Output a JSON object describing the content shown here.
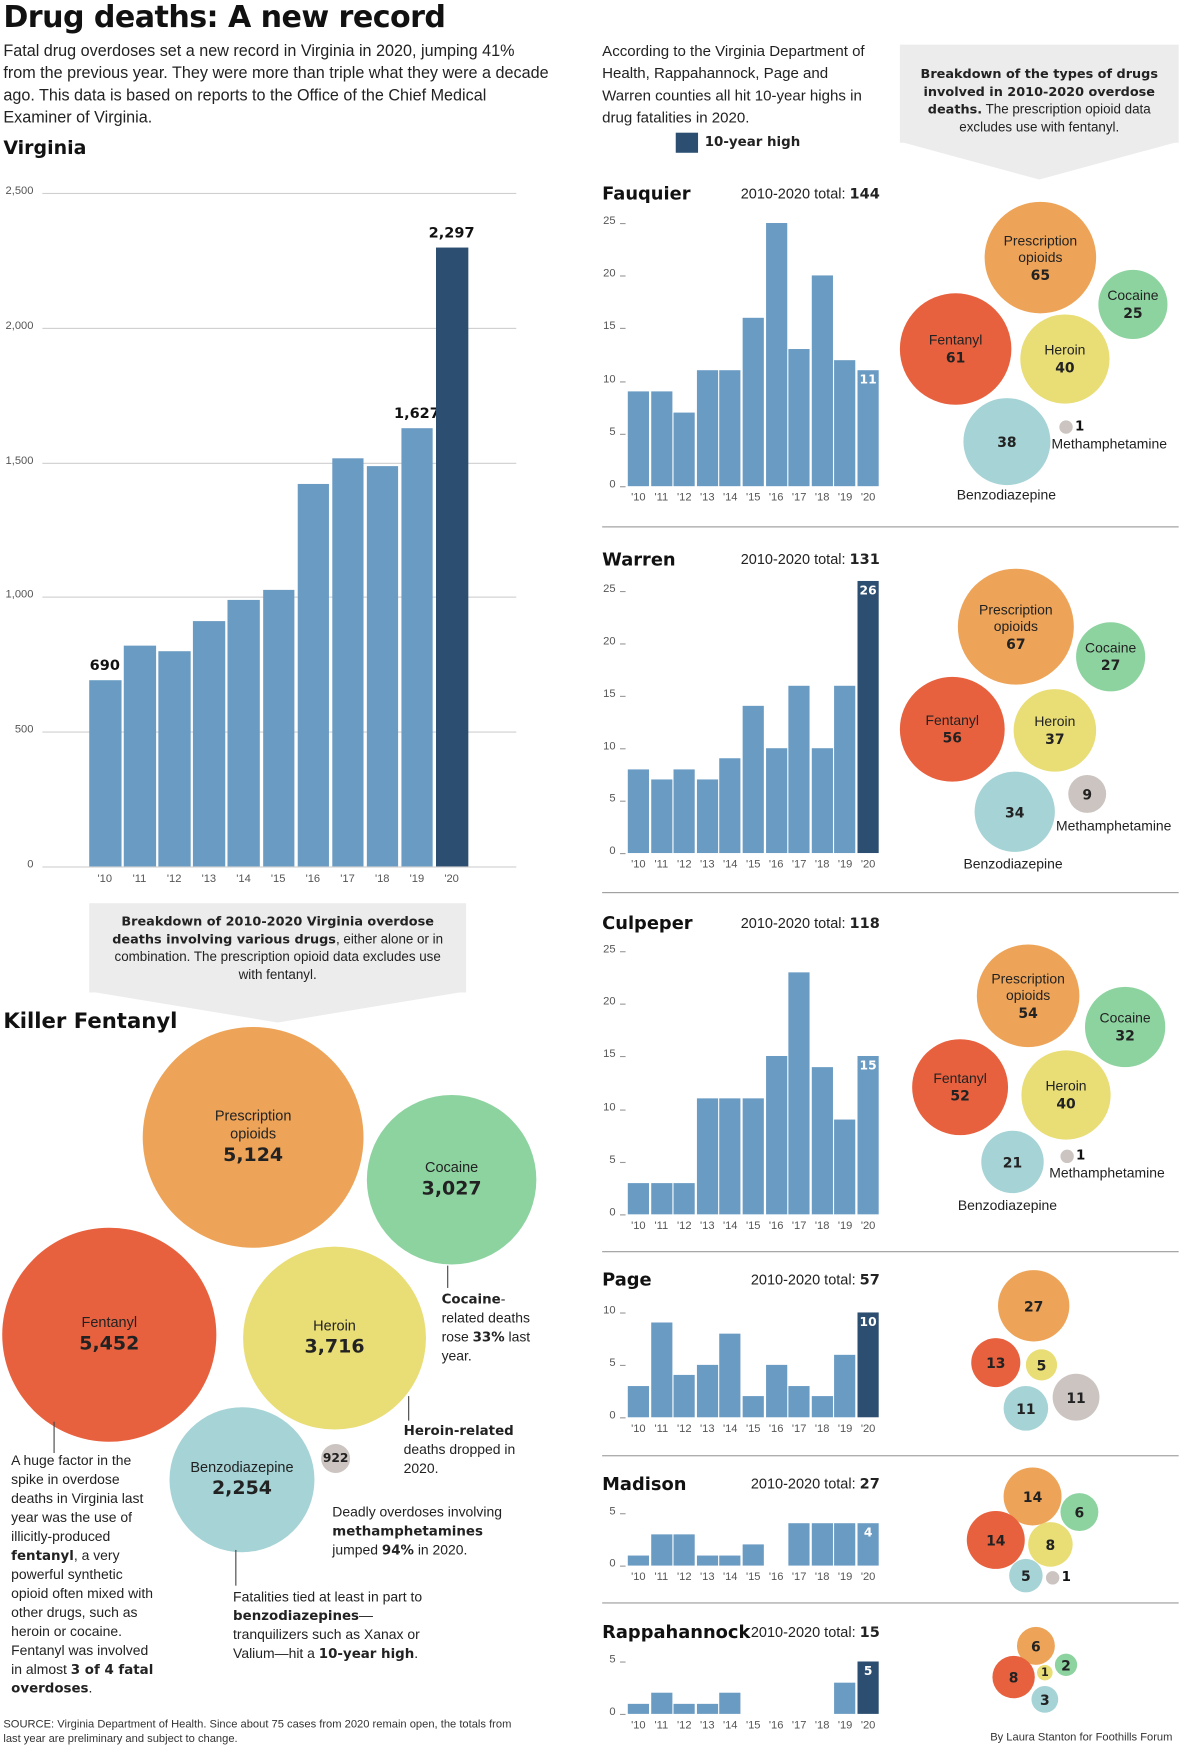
{
  "title": "Drug deaths: A new record",
  "intro": "Fatal drug overdoses set a new record in Virginia in 2020, jumping 41% from the previous year.  They were more than triple what they were a decade ago. This data is based on reports to the Office of the Chief Medical Examiner of Virginia.",
  "right_intro": "According to the Virginia Department of Health, Rappahannock, Page and Warren counties all hit 10-year highs in drug fatalities in 2020.",
  "legend": {
    "label": "10-year high",
    "color": "#2c4e70"
  },
  "colors": {
    "bar": "#6a9bc3",
    "highlight": "#2c4e70",
    "Prescription opioids": "#eda458",
    "Cocaine": "#8dd3a0",
    "Fentanyl": "#e8613f",
    "Heroin": "#e9dd75",
    "Benzodiazepine": "#a6d3d6",
    "Methamphetamine": "#cbc4c0"
  },
  "right_callout": [
    {
      "text": "Breakdown of the types of drugs involved in 2010-2020 overdose deaths.",
      "bold": true
    },
    {
      "text": " The prescription opioid data excludes use with fentanyl.",
      "bold": false
    }
  ],
  "left_callout": [
    {
      "text": "Breakdown of 2010-2020 Virginia overdose deaths involving various drugs",
      "bold": true
    },
    {
      "text": ", either alone or in combination. The prescription opioid data excludes use with fentanyl.",
      "bold": false
    }
  ],
  "killer_title": "Killer Fentanyl",
  "notes": {
    "fentanyl": [
      {
        "text": "A huge factor in the spike in overdose deaths in Virginia last year was the use of illicitly-produced ",
        "bold": false
      },
      {
        "text": "fentanyl",
        "bold": true
      },
      {
        "text": ", a very powerful synthetic opioid often mixed with other drugs, such as heroin or cocaine. Fentanyl was involved in almost ",
        "bold": false
      },
      {
        "text": "3 of 4 fatal overdoses",
        "bold": true
      },
      {
        "text": ".",
        "bold": false
      }
    ],
    "cocaine": [
      {
        "text": "Cocaine",
        "bold": true
      },
      {
        "text": "-related deaths rose ",
        "bold": false
      },
      {
        "text": "33%",
        "bold": true
      },
      {
        "text": " last year.",
        "bold": false
      }
    ],
    "heroin": [
      {
        "text": "Heroin-related",
        "bold": true
      },
      {
        "text": " deaths dropped in 2020.",
        "bold": false
      }
    ],
    "meth": [
      {
        "text": "Deadly overdoses involving ",
        "bold": false
      },
      {
        "text": "methamphetamines",
        "bold": true
      },
      {
        "text": " jumped ",
        "bold": false
      },
      {
        "text": "94%",
        "bold": true
      },
      {
        "text": " in 2020.",
        "bold": false
      }
    ],
    "benzo": [
      {
        "text": "Fatalities tied at least in part to ",
        "bold": false
      },
      {
        "text": "benzodiazepines",
        "bold": true
      },
      {
        "text": "—tranquilizers such as Xanax or Valium—hit a ",
        "bold": false
      },
      {
        "text": "10-year high",
        "bold": true
      },
      {
        "text": ".",
        "bold": false
      }
    ]
  },
  "source": "SOURCE: Virginia Department of Health. Since about 75 cases from 2020 remain open, the totals from last year are preliminary and subject to change.",
  "credit": "By Laura Stanton for Foothills Forum",
  "virginia_bubbles": [
    {
      "name": "Prescription opioids",
      "value": "5,124"
    },
    {
      "name": "Cocaine",
      "value": "3,027"
    },
    {
      "name": "Fentanyl",
      "value": "5,452"
    },
    {
      "name": "Heroin",
      "value": "3,716"
    },
    {
      "name": "Benzodiazepine",
      "value": "2,254"
    },
    {
      "name": "Methamphetamine",
      "value": "922"
    }
  ],
  "chart_data": [
    {
      "type": "bar",
      "title": "Virginia",
      "categories": [
        "'10",
        "'11",
        "'12",
        "'13",
        "'14",
        "'15",
        "'16",
        "'17",
        "'18",
        "'19",
        "'20"
      ],
      "values": [
        690,
        820,
        800,
        910,
        990,
        1025,
        1420,
        1515,
        1485,
        1627,
        2297
      ],
      "data_labels": {
        "0": "690",
        "9": "1,627",
        "10": "2,297"
      },
      "highlight": [
        10
      ],
      "yticks": [
        "0",
        "500",
        "1,000",
        "1,500",
        "2,000",
        "2,500"
      ],
      "ylim": [
        0,
        2500
      ],
      "grid": true
    },
    {
      "type": "bar",
      "title": "Fauquier",
      "total_label": "2010-2020 total: ",
      "total": "144",
      "categories": [
        "'10",
        "'11",
        "'12",
        "'13",
        "'14",
        "'15",
        "'16",
        "'17",
        "'18",
        "'19",
        "'20"
      ],
      "values": [
        9,
        9,
        7,
        11,
        11,
        16,
        25,
        13,
        20,
        12,
        11
      ],
      "highlight": [],
      "ylim": [
        0,
        25
      ],
      "yticks": [
        "0",
        "5",
        "10",
        "15",
        "20",
        "25"
      ],
      "bubbles": [
        {
          "name": "Prescription opioids",
          "value": "65"
        },
        {
          "name": "Cocaine",
          "value": "25"
        },
        {
          "name": "Fentanyl",
          "value": "61"
        },
        {
          "name": "Heroin",
          "value": "40"
        },
        {
          "name": "Benzodiazepine",
          "value": "38"
        },
        {
          "name": "Methamphetamine",
          "value": "1"
        }
      ]
    },
    {
      "type": "bar",
      "title": "Warren",
      "total_label": "2010-2020 total: ",
      "total": "131",
      "categories": [
        "'10",
        "'11",
        "'12",
        "'13",
        "'14",
        "'15",
        "'16",
        "'17",
        "'18",
        "'19",
        "'20"
      ],
      "values": [
        8,
        7,
        8,
        7,
        9,
        14,
        10,
        16,
        10,
        16,
        26
      ],
      "highlight": [
        10
      ],
      "ylim": [
        0,
        25
      ],
      "yticks": [
        "0",
        "5",
        "10",
        "15",
        "20",
        "25"
      ],
      "bubbles": [
        {
          "name": "Prescription opioids",
          "value": "67"
        },
        {
          "name": "Cocaine",
          "value": "27"
        },
        {
          "name": "Fentanyl",
          "value": "56"
        },
        {
          "name": "Heroin",
          "value": "37"
        },
        {
          "name": "Benzodiazepine",
          "value": "34"
        },
        {
          "name": "Methamphetamine",
          "value": "9"
        }
      ]
    },
    {
      "type": "bar",
      "title": "Culpeper",
      "total_label": "2010-2020 total: ",
      "total": "118",
      "categories": [
        "'10",
        "'11",
        "'12",
        "'13",
        "'14",
        "'15",
        "'16",
        "'17",
        "'18",
        "'19",
        "'20"
      ],
      "values": [
        3,
        3,
        3,
        11,
        11,
        11,
        15,
        23,
        14,
        9,
        15
      ],
      "highlight": [],
      "ylim": [
        0,
        25
      ],
      "yticks": [
        "0",
        "5",
        "10",
        "15",
        "20",
        "25"
      ],
      "bubbles": [
        {
          "name": "Prescription opioids",
          "value": "54"
        },
        {
          "name": "Cocaine",
          "value": "32"
        },
        {
          "name": "Fentanyl",
          "value": "52"
        },
        {
          "name": "Heroin",
          "value": "40"
        },
        {
          "name": "Benzodiazepine",
          "value": "21"
        },
        {
          "name": "Methamphetamine",
          "value": "1"
        }
      ]
    },
    {
      "type": "bar",
      "title": "Page",
      "total_label": "2010-2020 total: ",
      "total": "57",
      "categories": [
        "'10",
        "'11",
        "'12",
        "'13",
        "'14",
        "'15",
        "'16",
        "'17",
        "'18",
        "'19",
        "'20"
      ],
      "values": [
        3,
        9,
        4,
        5,
        8,
        2,
        5,
        3,
        2,
        6,
        10
      ],
      "highlight": [
        10
      ],
      "ylim": [
        0,
        10
      ],
      "yticks": [
        "0",
        "5",
        "10"
      ],
      "bubbles": [
        {
          "name": "Prescription opioids",
          "value": "27"
        },
        {
          "name": "Fentanyl",
          "value": "13"
        },
        {
          "name": "Heroin",
          "value": "5"
        },
        {
          "name": "Benzodiazepine",
          "value": "11"
        },
        {
          "name": "Methamphetamine",
          "value": "11"
        }
      ]
    },
    {
      "type": "bar",
      "title": "Madison",
      "total_label": "2010-2020 total: ",
      "total": "27",
      "categories": [
        "'10",
        "'11",
        "'12",
        "'13",
        "'14",
        "'15",
        "'16",
        "'17",
        "'18",
        "'19",
        "'20"
      ],
      "values": [
        1,
        3,
        3,
        1,
        1,
        2,
        0,
        4,
        4,
        4,
        4
      ],
      "highlight": [],
      "ylim": [
        0,
        5
      ],
      "yticks": [
        "0",
        "5"
      ],
      "bubbles": [
        {
          "name": "Prescription opioids",
          "value": "14"
        },
        {
          "name": "Cocaine",
          "value": "6"
        },
        {
          "name": "Fentanyl",
          "value": "14"
        },
        {
          "name": "Heroin",
          "value": "8"
        },
        {
          "name": "Benzodiazepine",
          "value": "5"
        },
        {
          "name": "Methamphetamine",
          "value": "1"
        }
      ]
    },
    {
      "type": "bar",
      "title": "Rappahannock",
      "total_label": "2010-2020 total: ",
      "total": "15",
      "categories": [
        "'10",
        "'11",
        "'12",
        "'13",
        "'14",
        "'15",
        "'16",
        "'17",
        "'18",
        "'19",
        "'20"
      ],
      "values": [
        1,
        2,
        1,
        1,
        2,
        0,
        0,
        0,
        0,
        3,
        5
      ],
      "highlight": [
        10
      ],
      "ylim": [
        0,
        5
      ],
      "yticks": [
        "0",
        "5"
      ],
      "bubbles": [
        {
          "name": "Prescription opioids",
          "value": "6"
        },
        {
          "name": "Cocaine",
          "value": "2"
        },
        {
          "name": "Fentanyl",
          "value": "8"
        },
        {
          "name": "Heroin",
          "value": "1"
        },
        {
          "name": "Benzodiazepine",
          "value": "3"
        }
      ]
    }
  ]
}
